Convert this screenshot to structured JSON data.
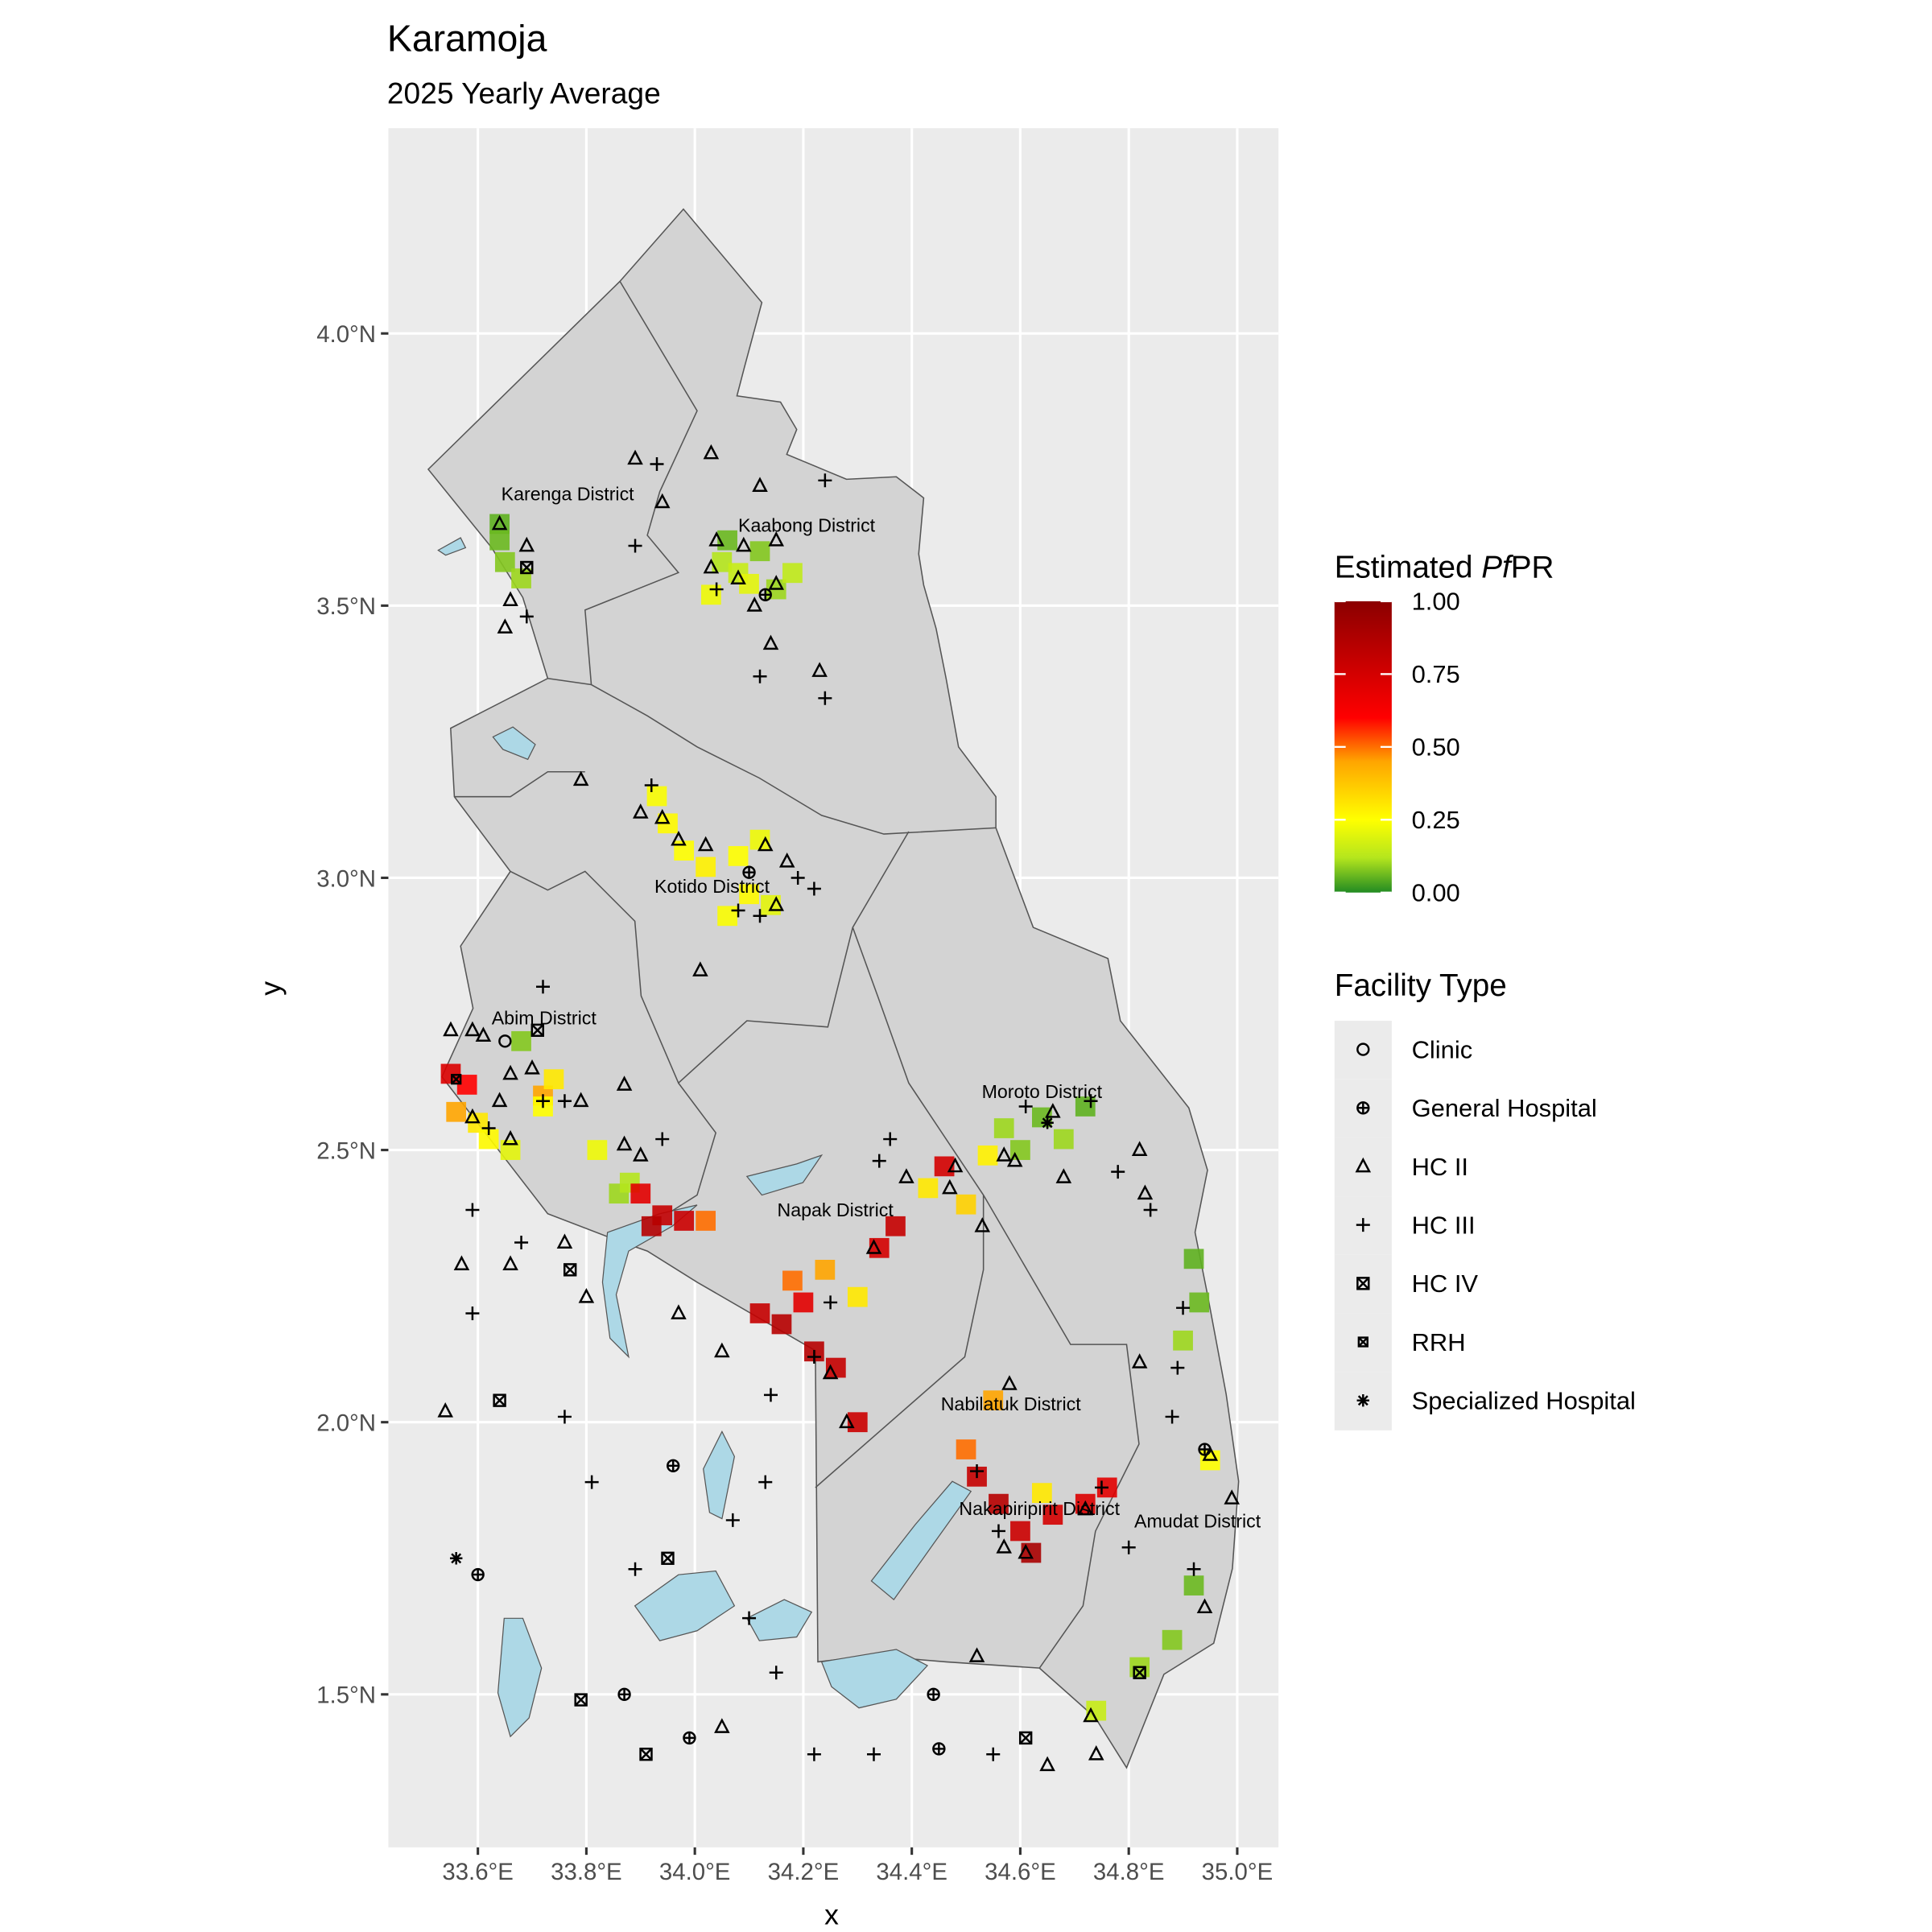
{
  "chart_data": {
    "type": "map",
    "title": "Karamoja",
    "subtitle": "2025 Yearly Average",
    "x_label": "x",
    "y_label": "y",
    "xlim": [
      33.435,
      35.076
    ],
    "ylim": [
      1.219,
      4.377
    ],
    "xticks": [
      {
        "value": 33.6,
        "label": "33.6°E"
      },
      {
        "value": 33.8,
        "label": "33.8°E"
      },
      {
        "value": 34.0,
        "label": "34.0°E"
      },
      {
        "value": 34.2,
        "label": "34.2°E"
      },
      {
        "value": 34.4,
        "label": "34.4°E"
      },
      {
        "value": 34.6,
        "label": "34.6°E"
      },
      {
        "value": 34.8,
        "label": "34.8°E"
      },
      {
        "value": 35.0,
        "label": "35.0°E"
      }
    ],
    "yticks": [
      {
        "value": 1.5,
        "label": "1.5°N"
      },
      {
        "value": 2.0,
        "label": "2.0°N"
      },
      {
        "value": 2.5,
        "label": "2.5°N"
      },
      {
        "value": 3.0,
        "label": "3.0°N"
      },
      {
        "value": 3.5,
        "label": "3.5°N"
      },
      {
        "value": 4.0,
        "label": "4.0°N"
      }
    ],
    "grid": true,
    "districts": [
      "Karenga District",
      "Kaabong District",
      "Kotido District",
      "Abim District",
      "Moroto District",
      "Napak District",
      "Nabilatuk District",
      "Nakapiripirit District",
      "Amudat District"
    ],
    "colorbar": {
      "title": [
        "Estimated ",
        "Pf",
        "PR"
      ],
      "lim": [
        0,
        1
      ],
      "ticks": [
        {
          "value": 0,
          "label": "0.00"
        },
        {
          "value": 0.25,
          "label": "0.25"
        },
        {
          "value": 0.5,
          "label": "0.50"
        },
        {
          "value": 0.75,
          "label": "0.75"
        },
        {
          "value": 1,
          "label": "1.00"
        }
      ],
      "stops": [
        [
          0,
          "#228b22"
        ],
        [
          0.12,
          "#b5e61d"
        ],
        [
          0.25,
          "#ffff00"
        ],
        [
          0.45,
          "#ffa500"
        ],
        [
          0.6,
          "#ff0000"
        ],
        [
          1,
          "#8b0000"
        ]
      ]
    },
    "facility_legend_title": "Facility Type",
    "facility_types": [
      {
        "name": "Clinic",
        "shape": "circle"
      },
      {
        "name": "General Hospital",
        "shape": "circle-plus"
      },
      {
        "name": "HC II",
        "shape": "triangle"
      },
      {
        "name": "HC III",
        "shape": "plus"
      },
      {
        "name": "HC IV",
        "shape": "square-x"
      },
      {
        "name": "RRH",
        "shape": "square-x-small"
      },
      {
        "name": "Specialized Hospital",
        "shape": "asterisk"
      }
    ],
    "pfpr": [
      [
        33.64,
        3.65,
        0.05
      ],
      [
        33.64,
        3.62,
        0.06
      ],
      [
        33.65,
        3.58,
        0.08
      ],
      [
        33.68,
        3.55,
        0.1
      ],
      [
        34.05,
        3.58,
        0.12
      ],
      [
        34.08,
        3.56,
        0.15
      ],
      [
        34.1,
        3.54,
        0.2
      ],
      [
        34.03,
        3.52,
        0.22
      ],
      [
        34.15,
        3.53,
        0.1
      ],
      [
        34.18,
        3.56,
        0.14
      ],
      [
        34.12,
        3.6,
        0.08
      ],
      [
        34.06,
        3.62,
        0.06
      ],
      [
        33.93,
        3.15,
        0.24
      ],
      [
        33.95,
        3.1,
        0.26
      ],
      [
        33.98,
        3.05,
        0.25
      ],
      [
        34.02,
        3.02,
        0.28
      ],
      [
        34.08,
        3.04,
        0.25
      ],
      [
        34.12,
        3.07,
        0.22
      ],
      [
        34.1,
        2.97,
        0.26
      ],
      [
        34.06,
        2.93,
        0.24
      ],
      [
        34.14,
        2.95,
        0.2
      ],
      [
        33.55,
        2.64,
        0.72
      ],
      [
        33.58,
        2.62,
        0.6
      ],
      [
        33.56,
        2.57,
        0.45
      ],
      [
        33.6,
        2.55,
        0.3
      ],
      [
        33.62,
        2.52,
        0.26
      ],
      [
        33.66,
        2.5,
        0.2
      ],
      [
        33.72,
        2.6,
        0.45
      ],
      [
        33.74,
        2.63,
        0.3
      ],
      [
        33.68,
        2.7,
        0.08
      ],
      [
        33.72,
        2.58,
        0.25
      ],
      [
        33.82,
        2.5,
        0.22
      ],
      [
        33.86,
        2.42,
        0.1
      ],
      [
        33.88,
        2.44,
        0.12
      ],
      [
        33.9,
        2.42,
        0.7
      ],
      [
        33.94,
        2.38,
        0.8
      ],
      [
        33.98,
        2.37,
        0.78
      ],
      [
        34.02,
        2.37,
        0.5
      ],
      [
        33.92,
        2.36,
        0.85
      ],
      [
        34.12,
        2.2,
        0.8
      ],
      [
        34.16,
        2.18,
        0.85
      ],
      [
        34.2,
        2.22,
        0.7
      ],
      [
        34.18,
        2.26,
        0.5
      ],
      [
        34.24,
        2.28,
        0.45
      ],
      [
        34.3,
        2.23,
        0.3
      ],
      [
        34.22,
        2.13,
        0.85
      ],
      [
        34.26,
        2.1,
        0.8
      ],
      [
        34.3,
        2.0,
        0.78
      ],
      [
        34.34,
        2.32,
        0.75
      ],
      [
        34.37,
        2.36,
        0.8
      ],
      [
        34.46,
        2.47,
        0.75
      ],
      [
        34.43,
        2.43,
        0.3
      ],
      [
        34.5,
        2.4,
        0.35
      ],
      [
        34.57,
        2.54,
        0.1
      ],
      [
        34.6,
        2.5,
        0.08
      ],
      [
        34.64,
        2.56,
        0.06
      ],
      [
        34.68,
        2.52,
        0.1
      ],
      [
        34.72,
        2.58,
        0.05
      ],
      [
        34.54,
        2.49,
        0.28
      ],
      [
        34.92,
        2.3,
        0.05
      ],
      [
        34.93,
        2.22,
        0.06
      ],
      [
        34.9,
        2.15,
        0.1
      ],
      [
        34.55,
        2.04,
        0.45
      ],
      [
        34.5,
        1.95,
        0.5
      ],
      [
        34.52,
        1.9,
        0.8
      ],
      [
        34.56,
        1.85,
        0.85
      ],
      [
        34.6,
        1.8,
        0.78
      ],
      [
        34.62,
        1.76,
        0.9
      ],
      [
        34.66,
        1.83,
        0.75
      ],
      [
        34.72,
        1.85,
        0.72
      ],
      [
        34.76,
        1.88,
        0.7
      ],
      [
        34.64,
        1.87,
        0.3
      ],
      [
        34.95,
        1.93,
        0.25
      ],
      [
        34.82,
        1.55,
        0.1
      ],
      [
        34.74,
        1.47,
        0.15
      ],
      [
        34.88,
        1.6,
        0.08
      ],
      [
        34.92,
        1.7,
        0.06
      ]
    ],
    "facilities": [
      [
        33.64,
        3.65,
        2
      ],
      [
        33.69,
        3.61,
        2
      ],
      [
        33.69,
        3.57,
        4
      ],
      [
        33.66,
        3.51,
        2
      ],
      [
        33.69,
        3.48,
        3
      ],
      [
        33.65,
        3.46,
        2
      ],
      [
        33.89,
        3.77,
        2
      ],
      [
        33.93,
        3.76,
        3
      ],
      [
        34.03,
        3.78,
        2
      ],
      [
        33.94,
        3.69,
        2
      ],
      [
        33.89,
        3.61,
        3
      ],
      [
        34.12,
        3.72,
        2
      ],
      [
        34.24,
        3.73,
        3
      ],
      [
        34.04,
        3.62,
        2
      ],
      [
        34.09,
        3.61,
        2
      ],
      [
        34.15,
        3.62,
        2
      ],
      [
        34.03,
        3.57,
        2
      ],
      [
        34.08,
        3.55,
        2
      ],
      [
        34.13,
        3.52,
        1
      ],
      [
        34.04,
        3.53,
        3
      ],
      [
        34.11,
        3.5,
        2
      ],
      [
        34.15,
        3.54,
        2
      ],
      [
        34.14,
        3.43,
        2
      ],
      [
        34.12,
        3.37,
        3
      ],
      [
        34.23,
        3.38,
        2
      ],
      [
        34.24,
        3.33,
        3
      ],
      [
        33.79,
        3.18,
        2
      ],
      [
        33.92,
        3.17,
        3
      ],
      [
        33.9,
        3.12,
        2
      ],
      [
        33.94,
        3.11,
        2
      ],
      [
        33.97,
        3.07,
        2
      ],
      [
        34.02,
        3.06,
        2
      ],
      [
        34.1,
        3.01,
        1
      ],
      [
        34.13,
        3.06,
        2
      ],
      [
        34.17,
        3.03,
        2
      ],
      [
        34.19,
        3.0,
        3
      ],
      [
        34.22,
        2.98,
        3
      ],
      [
        34.08,
        2.94,
        3
      ],
      [
        34.12,
        2.93,
        3
      ],
      [
        34.15,
        2.95,
        2
      ],
      [
        34.01,
        2.83,
        2
      ],
      [
        33.72,
        2.8,
        3
      ],
      [
        33.55,
        2.72,
        2
      ],
      [
        33.59,
        2.72,
        2
      ],
      [
        33.61,
        2.71,
        2
      ],
      [
        33.65,
        2.7,
        0
      ],
      [
        33.71,
        2.72,
        4
      ],
      [
        33.66,
        2.64,
        2
      ],
      [
        33.7,
        2.65,
        2
      ],
      [
        33.56,
        2.63,
        5
      ],
      [
        33.64,
        2.59,
        2
      ],
      [
        33.72,
        2.59,
        3
      ],
      [
        33.76,
        2.59,
        3
      ],
      [
        33.79,
        2.59,
        2
      ],
      [
        33.87,
        2.62,
        2
      ],
      [
        33.59,
        2.56,
        2
      ],
      [
        33.62,
        2.54,
        3
      ],
      [
        33.66,
        2.52,
        2
      ],
      [
        33.94,
        2.52,
        3
      ],
      [
        33.87,
        2.51,
        2
      ],
      [
        33.9,
        2.49,
        2
      ],
      [
        34.36,
        2.52,
        3
      ],
      [
        34.34,
        2.48,
        3
      ],
      [
        34.39,
        2.45,
        2
      ],
      [
        34.48,
        2.47,
        2
      ],
      [
        34.47,
        2.43,
        2
      ],
      [
        34.53,
        2.36,
        2
      ],
      [
        34.33,
        2.32,
        2
      ],
      [
        34.25,
        2.22,
        3
      ],
      [
        34.22,
        2.12,
        3
      ],
      [
        34.25,
        2.09,
        2
      ],
      [
        34.28,
        2.0,
        2
      ],
      [
        34.61,
        2.58,
        3
      ],
      [
        34.65,
        2.55,
        6
      ],
      [
        34.66,
        2.57,
        2
      ],
      [
        34.57,
        2.49,
        2
      ],
      [
        34.59,
        2.48,
        2
      ],
      [
        34.68,
        2.45,
        2
      ],
      [
        34.73,
        2.59,
        3
      ],
      [
        34.82,
        2.5,
        2
      ],
      [
        34.83,
        2.42,
        2
      ],
      [
        34.78,
        2.46,
        3
      ],
      [
        34.84,
        2.39,
        3
      ],
      [
        34.9,
        2.21,
        3
      ],
      [
        34.82,
        2.11,
        2
      ],
      [
        34.89,
        2.1,
        3
      ],
      [
        34.88,
        2.01,
        3
      ],
      [
        34.94,
        1.95,
        1
      ],
      [
        34.95,
        1.94,
        2
      ],
      [
        34.99,
        1.86,
        2
      ],
      [
        34.92,
        1.73,
        3
      ],
      [
        34.94,
        1.66,
        2
      ],
      [
        34.58,
        2.07,
        2
      ],
      [
        34.52,
        1.91,
        3
      ],
      [
        34.56,
        1.8,
        3
      ],
      [
        34.61,
        1.76,
        2
      ],
      [
        34.57,
        1.77,
        2
      ],
      [
        34.72,
        1.84,
        2
      ],
      [
        34.75,
        1.88,
        3
      ],
      [
        34.8,
        1.77,
        3
      ],
      [
        34.82,
        1.54,
        4
      ],
      [
        34.73,
        1.46,
        2
      ],
      [
        34.74,
        1.39,
        2
      ],
      [
        33.59,
        2.39,
        3
      ],
      [
        33.57,
        2.29,
        2
      ],
      [
        33.59,
        2.2,
        3
      ],
      [
        33.66,
        2.29,
        2
      ],
      [
        33.68,
        2.33,
        3
      ],
      [
        33.77,
        2.28,
        4
      ],
      [
        33.8,
        2.23,
        2
      ],
      [
        33.76,
        2.33,
        2
      ],
      [
        33.97,
        2.2,
        2
      ],
      [
        34.05,
        2.13,
        2
      ],
      [
        33.64,
        2.04,
        4
      ],
      [
        33.54,
        2.02,
        2
      ],
      [
        33.56,
        1.75,
        6
      ],
      [
        33.6,
        1.72,
        1
      ],
      [
        33.96,
        1.92,
        1
      ],
      [
        33.95,
        1.75,
        4
      ],
      [
        33.87,
        1.5,
        1
      ],
      [
        33.79,
        1.49,
        4
      ],
      [
        33.91,
        1.39,
        4
      ],
      [
        33.99,
        1.42,
        1
      ],
      [
        34.05,
        1.44,
        2
      ],
      [
        34.15,
        1.54,
        3
      ],
      [
        34.44,
        1.5,
        1
      ],
      [
        34.45,
        1.4,
        1
      ],
      [
        34.61,
        1.42,
        4
      ],
      [
        34.55,
        1.39,
        3
      ],
      [
        34.33,
        1.39,
        3
      ],
      [
        34.22,
        1.39,
        3
      ],
      [
        34.13,
        1.89,
        3
      ],
      [
        34.07,
        1.82,
        3
      ],
      [
        33.81,
        1.89,
        3
      ],
      [
        33.76,
        2.01,
        3
      ],
      [
        33.89,
        1.73,
        3
      ],
      [
        34.1,
        1.64,
        3
      ],
      [
        34.14,
        2.05,
        3
      ],
      [
        34.52,
        1.57,
        2
      ],
      [
        34.65,
        1.37,
        2
      ]
    ]
  }
}
